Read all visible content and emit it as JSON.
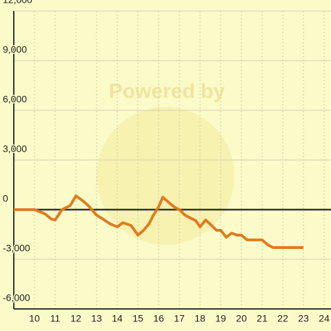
{
  "chart_data": {
    "type": "line",
    "watermark": "Powered by",
    "color": "#e07b20",
    "grid": true,
    "x": [
      9,
      10,
      10.5,
      10.83,
      11,
      11.33,
      11.73,
      12,
      12.33,
      12.6,
      13,
      13.27,
      13.67,
      14,
      14.27,
      14.67,
      15,
      15.27,
      15.53,
      15.73,
      16,
      16.2,
      16.5,
      16.8,
      17,
      17.27,
      17.53,
      17.8,
      18,
      18.27,
      18.53,
      18.8,
      19,
      19.27,
      19.53,
      19.8,
      20,
      20.27,
      21,
      21.27,
      21.53,
      23
    ],
    "values": [
      0,
      0,
      -250,
      -580,
      -620,
      0,
      250,
      830,
      540,
      250,
      -330,
      -540,
      -870,
      -1040,
      -790,
      -960,
      -1540,
      -1250,
      -870,
      -375,
      170,
      750,
      420,
      125,
      0,
      -330,
      -500,
      -670,
      -1040,
      -625,
      -920,
      -1250,
      -1250,
      -1670,
      -1420,
      -1540,
      -1540,
      -1830,
      -1830,
      -2120,
      -2290,
      -2290
    ],
    "xlim": [
      9,
      24.33
    ],
    "xticks": [
      10,
      11,
      12,
      13,
      14,
      15,
      16,
      17,
      18,
      19,
      20,
      21,
      22,
      23,
      24
    ],
    "ylim": [
      -6000,
      12000
    ],
    "yticks": [
      {
        "value": -6000,
        "label": "-6,000"
      },
      {
        "value": -3000,
        "label": "-3,000"
      },
      0,
      {
        "value": 3000,
        "label": "3,000"
      },
      {
        "value": 6000,
        "label": "6,000"
      },
      {
        "value": 9000,
        "label": "9,000"
      },
      {
        "value": 12000,
        "label": "12,000"
      }
    ]
  }
}
